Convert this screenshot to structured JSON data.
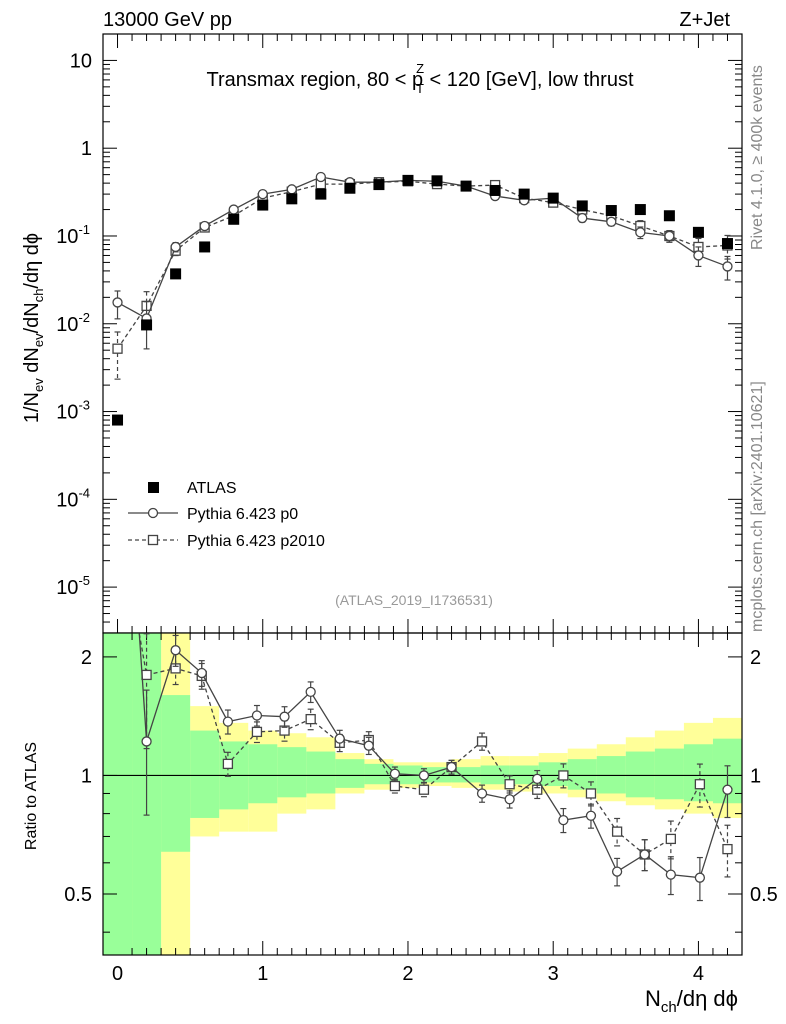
{
  "chart_data": {
    "type": "scatter",
    "header_left": "13000 GeV pp",
    "header_right": "Z+Jet",
    "title": "Transmax region, 80 < p",
    "title_sup": "Z",
    "title_sub": "T",
    "title_rest": " < 120 [GeV], low thrust",
    "analysis_id": "(ATLAS_2019_I1736531)",
    "side_label_1": "Rivet 4.1.0, ≥ 400k events",
    "side_label_2": "mcplots.cern.ch [arXiv:2401.10621]",
    "xlabel": "N",
    "xlabel_sub": "ch",
    "xlabel_rest": "/dη dϕ",
    "ylabel_ratio": "Ratio to ATLAS",
    "xlim": [
      -0.1,
      4.3
    ],
    "ylim_main": [
      3e-06,
      20
    ],
    "ylim_ratio": [
      0.35,
      2.3
    ],
    "x_ticks": [
      "0",
      "1",
      "2",
      "3",
      "4"
    ],
    "y_ticks_main": [
      {
        "base": "10",
        "exp": "-5",
        "value": 1e-05
      },
      {
        "base": "10",
        "exp": "-4",
        "value": 0.0001
      },
      {
        "base": "10",
        "exp": "-3",
        "value": 0.001
      },
      {
        "base": "10",
        "exp": "-2",
        "value": 0.01
      },
      {
        "base": "10",
        "exp": "-1",
        "value": 0.1
      },
      {
        "base": "1",
        "exp": "",
        "value": 1
      },
      {
        "base": "10",
        "exp": "",
        "value": 10
      }
    ],
    "y_ticks_ratio": [
      "0.5",
      "1",
      "2"
    ],
    "x": [
      0.0,
      0.2,
      0.4,
      0.6,
      0.8,
      1.0,
      1.2,
      1.4,
      1.6,
      1.8,
      2.0,
      2.2,
      2.4,
      2.6,
      2.8,
      3.0,
      3.2,
      3.4,
      3.6,
      3.8,
      4.0,
      4.2
    ],
    "bin_edges": [
      -0.1,
      0.1,
      0.3,
      0.5,
      0.7,
      0.9,
      1.1,
      1.3,
      1.5,
      1.7,
      1.9,
      2.1,
      2.3,
      2.5,
      2.7,
      2.9,
      3.1,
      3.3,
      3.5,
      3.7,
      3.9,
      4.1,
      4.3
    ],
    "legend": [
      "ATLAS",
      "Pythia 6.423 p0",
      "Pythia 6.423 p2010"
    ],
    "series": [
      {
        "name": "ATLAS",
        "marker": "filled-square",
        "values": [
          0.0008,
          0.0097,
          0.037,
          0.075,
          0.155,
          0.225,
          0.265,
          0.3,
          0.35,
          0.385,
          0.43,
          0.425,
          0.37,
          0.33,
          0.3,
          0.27,
          0.22,
          0.195,
          0.2,
          0.17,
          0.11,
          0.082
        ]
      },
      {
        "name": "Pythia 6.423 p0",
        "marker": "open-circle",
        "values": [
          0.0175,
          0.0115,
          0.075,
          0.13,
          0.2,
          0.3,
          0.34,
          0.47,
          0.41,
          0.41,
          0.43,
          0.42,
          0.37,
          0.285,
          0.255,
          0.27,
          0.16,
          0.145,
          0.11,
          0.1,
          0.06,
          0.045
        ],
        "rel_err": [
          0.35,
          0.55,
          0.12,
          0.1,
          0.08,
          0.06,
          0.06,
          0.05,
          0.05,
          0.05,
          0.05,
          0.05,
          0.05,
          0.06,
          0.06,
          0.06,
          0.1,
          0.1,
          0.15,
          0.15,
          0.25,
          0.3
        ]
      },
      {
        "name": "Pythia 6.423 p2010",
        "marker": "open-square",
        "values": [
          0.0052,
          0.016,
          0.068,
          0.125,
          0.17,
          0.27,
          0.32,
          0.39,
          0.39,
          0.41,
          0.42,
          0.39,
          0.37,
          0.38,
          0.27,
          0.24,
          0.2,
          0.17,
          0.13,
          0.1,
          0.075,
          0.078
        ],
        "rel_err": [
          0.55,
          0.45,
          0.12,
          0.1,
          0.08,
          0.06,
          0.06,
          0.05,
          0.05,
          0.05,
          0.05,
          0.05,
          0.05,
          0.06,
          0.06,
          0.06,
          0.1,
          0.1,
          0.15,
          0.15,
          0.25,
          0.3
        ]
      }
    ],
    "ratio": {
      "p0": [
        2.5,
        1.22,
        2.08,
        1.82,
        1.37,
        1.42,
        1.41,
        1.63,
        1.24,
        1.19,
        1.01,
        1.0,
        1.05,
        0.9,
        0.87,
        0.98,
        0.77,
        0.79,
        0.57,
        0.63,
        0.56,
        0.55,
        0.92
      ],
      "p2010": [
        2.5,
        1.8,
        1.87,
        1.79,
        1.07,
        1.29,
        1.3,
        1.39,
        1.21,
        1.23,
        0.94,
        0.92,
        1.05,
        1.22,
        0.95,
        0.92,
        1.0,
        0.9,
        0.72,
        0.63,
        0.69,
        0.95,
        0.65
      ],
      "x": [
        0.15,
        0.2,
        0.4,
        0.58,
        0.76,
        0.96,
        1.15,
        1.33,
        1.53,
        1.73,
        1.91,
        2.11,
        2.3,
        2.51,
        2.7,
        2.89,
        3.07,
        3.26,
        3.44,
        3.63,
        3.81,
        4.01,
        4.2
      ],
      "err": [
        0.8,
        0.7,
        0.18,
        0.15,
        0.14,
        0.12,
        0.12,
        0.12,
        0.1,
        0.1,
        0.08,
        0.08,
        0.08,
        0.1,
        0.1,
        0.1,
        0.14,
        0.14,
        0.16,
        0.18,
        0.22,
        0.25,
        0.3
      ]
    },
    "bands": {
      "green": [
        [
          0.35,
          2.3
        ],
        [
          0.35,
          2.3
        ],
        [
          0.64,
          1.6
        ],
        [
          0.78,
          1.3
        ],
        [
          0.82,
          1.22
        ],
        [
          0.85,
          1.2
        ],
        [
          0.88,
          1.18
        ],
        [
          0.9,
          1.15
        ],
        [
          0.93,
          1.1
        ],
        [
          0.95,
          1.07
        ],
        [
          0.95,
          1.06
        ],
        [
          0.96,
          1.05
        ],
        [
          0.96,
          1.05
        ],
        [
          0.95,
          1.06
        ],
        [
          0.95,
          1.06
        ],
        [
          0.94,
          1.08
        ],
        [
          0.92,
          1.1
        ],
        [
          0.9,
          1.12
        ],
        [
          0.88,
          1.15
        ],
        [
          0.87,
          1.17
        ],
        [
          0.86,
          1.2
        ],
        [
          0.85,
          1.24
        ]
      ],
      "yellow": [
        [
          0.35,
          2.3
        ],
        [
          0.35,
          2.3
        ],
        [
          0.35,
          2.3
        ],
        [
          0.7,
          1.5
        ],
        [
          0.72,
          1.36
        ],
        [
          0.72,
          1.3
        ],
        [
          0.8,
          1.28
        ],
        [
          0.82,
          1.25
        ],
        [
          0.9,
          1.14
        ],
        [
          0.92,
          1.1
        ],
        [
          0.93,
          1.08
        ],
        [
          0.94,
          1.08
        ],
        [
          0.93,
          1.1
        ],
        [
          0.92,
          1.12
        ],
        [
          0.91,
          1.12
        ],
        [
          0.9,
          1.14
        ],
        [
          0.88,
          1.17
        ],
        [
          0.86,
          1.2
        ],
        [
          0.84,
          1.25
        ],
        [
          0.82,
          1.3
        ],
        [
          0.8,
          1.36
        ],
        [
          0.78,
          1.4
        ]
      ]
    },
    "colors": {
      "green": "#99ff99",
      "yellow": "#ffff99",
      "data": "#000000",
      "mc": "#444444",
      "side_text": "#888888"
    }
  }
}
